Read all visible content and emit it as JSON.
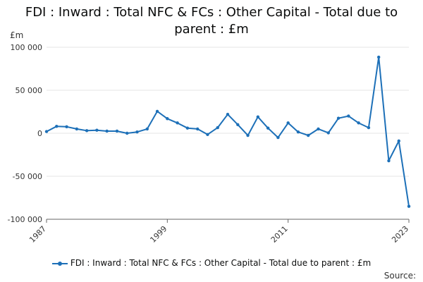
{
  "title_line1": "FDI : Inward : Total NFC & FCs : Other Capital - Total due to",
  "title_line2": "parent : £m",
  "unit_label": "£m",
  "source_label": "Source:",
  "colors": {
    "series": "#1d70b8",
    "grid": "#e6e6e6",
    "axis": "#666666"
  },
  "chart_data": {
    "type": "line",
    "title": "FDI : Inward : Total NFC & FCs : Other Capital - Total due to parent : £m",
    "ylabel": "£m",
    "ylim": [
      -100000,
      100000
    ],
    "yticks": [
      100000,
      50000,
      0,
      -50000,
      -100000
    ],
    "ytick_labels": [
      "100 000",
      "50 000",
      "0",
      "-50 000",
      "-100 000"
    ],
    "xlim": [
      1987,
      2023
    ],
    "xticks": [
      1987,
      1999,
      2011,
      2023
    ],
    "grid": true,
    "legend": "bottom",
    "series": [
      {
        "name": "FDI : Inward : Total NFC & FCs : Other Capital - Total due to parent : £m",
        "x": [
          1987,
          1988,
          1989,
          1990,
          1991,
          1992,
          1993,
          1994,
          1995,
          1996,
          1997,
          1998,
          1999,
          2000,
          2001,
          2002,
          2003,
          2004,
          2005,
          2006,
          2007,
          2008,
          2009,
          2010,
          2011,
          2012,
          2013,
          2014,
          2015,
          2016,
          2017,
          2018,
          2019,
          2020,
          2021,
          2022,
          2023
        ],
        "values": [
          2000,
          8000,
          7500,
          5000,
          3000,
          3500,
          2500,
          2500,
          0,
          1500,
          5000,
          25500,
          17000,
          12000,
          6000,
          5000,
          -1500,
          6500,
          22000,
          10000,
          -2500,
          19000,
          6000,
          -5000,
          12000,
          1500,
          -2500,
          5000,
          500,
          17500,
          20000,
          12000,
          6500,
          88500,
          -32000,
          -9000,
          -85000
        ]
      }
    ]
  }
}
